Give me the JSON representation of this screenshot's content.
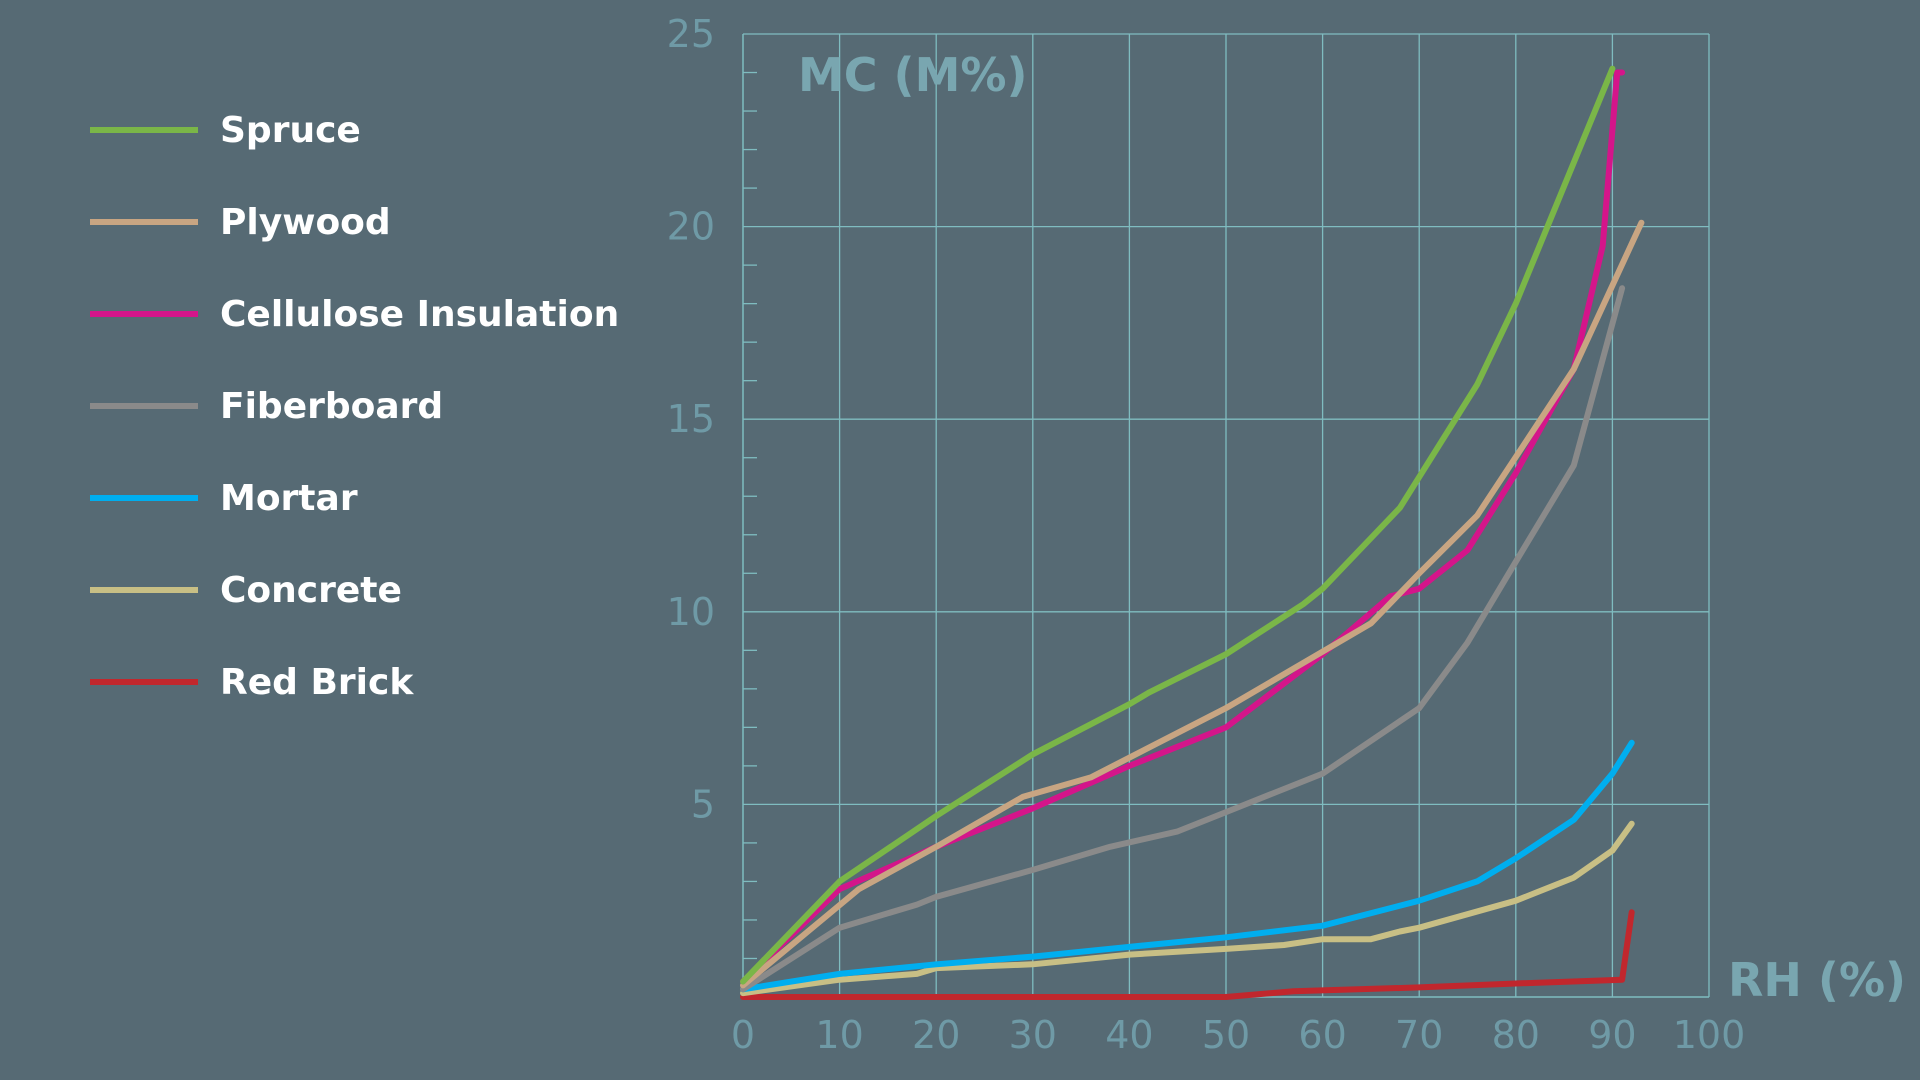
{
  "chart_data": {
    "type": "line",
    "title": "",
    "xlabel": "RH (%)",
    "ylabel": "MC (M%)",
    "xlim": [
      0,
      100
    ],
    "ylim": [
      0,
      25
    ],
    "xticks": [
      0,
      10,
      20,
      30,
      40,
      50,
      60,
      70,
      80,
      90,
      100
    ],
    "yticks": [
      5,
      10,
      15,
      20,
      25
    ],
    "grid": true,
    "legend_position": "left",
    "colors": {
      "background": "#566a74",
      "grid": "#7fbcc0",
      "tick_label": "#6f9aa6",
      "axis_label": "#79a6b0"
    },
    "series": [
      {
        "name": "Spruce",
        "color": "#7ab648",
        "x": [
          0,
          10,
          20,
          30,
          40,
          42,
          50,
          58,
          60,
          68,
          76,
          80,
          90
        ],
        "y": [
          0.4,
          3.0,
          4.7,
          6.3,
          7.6,
          7.9,
          8.9,
          10.2,
          10.6,
          12.7,
          15.9,
          18.0,
          24.1
        ]
      },
      {
        "name": "Plywood",
        "color": "#c8a582",
        "x": [
          0,
          12,
          20,
          29,
          36,
          50,
          65,
          70,
          76,
          86,
          93
        ],
        "y": [
          0.3,
          2.8,
          3.9,
          5.2,
          5.7,
          7.5,
          9.7,
          11.0,
          12.5,
          16.3,
          20.1
        ]
      },
      {
        "name": "Cellulose Insulation",
        "color": "#d4158a",
        "x": [
          0,
          10,
          20,
          30,
          40,
          50,
          60,
          67,
          70,
          75,
          80,
          86,
          89,
          90.5,
          91
        ],
        "y": [
          0.4,
          2.8,
          3.9,
          4.9,
          6.0,
          7.0,
          8.9,
          10.4,
          10.6,
          11.6,
          13.6,
          16.3,
          19.5,
          24.0,
          24.0
        ]
      },
      {
        "name": "Fiberboard",
        "color": "#8a8a8a",
        "x": [
          0,
          10,
          18,
          20,
          30,
          38,
          45,
          50,
          60,
          70,
          75,
          80,
          86,
          91
        ],
        "y": [
          0.2,
          1.8,
          2.4,
          2.6,
          3.3,
          3.9,
          4.3,
          4.8,
          5.8,
          7.5,
          9.2,
          11.3,
          13.8,
          18.4
        ]
      },
      {
        "name": "Mortar",
        "color": "#00aeef",
        "x": [
          0,
          10,
          20,
          30,
          40,
          50,
          60,
          70,
          76,
          80,
          86,
          90,
          92
        ],
        "y": [
          0.2,
          0.6,
          0.85,
          1.05,
          1.3,
          1.55,
          1.85,
          2.5,
          3.0,
          3.6,
          4.6,
          5.8,
          6.6
        ]
      },
      {
        "name": "Concrete",
        "color": "#c8bf85",
        "x": [
          0,
          10,
          18,
          20,
          30,
          40,
          50,
          56,
          60,
          65,
          68,
          70,
          80,
          86,
          90,
          92
        ],
        "y": [
          0.1,
          0.45,
          0.6,
          0.75,
          0.85,
          1.1,
          1.25,
          1.35,
          1.5,
          1.5,
          1.7,
          1.8,
          2.5,
          3.1,
          3.8,
          4.5
        ]
      },
      {
        "name": "Red Brick",
        "color": "#c1272d",
        "x": [
          0,
          50,
          57,
          70,
          80,
          91,
          92
        ],
        "y": [
          0,
          0,
          0.15,
          0.25,
          0.35,
          0.45,
          2.2
        ]
      }
    ]
  }
}
